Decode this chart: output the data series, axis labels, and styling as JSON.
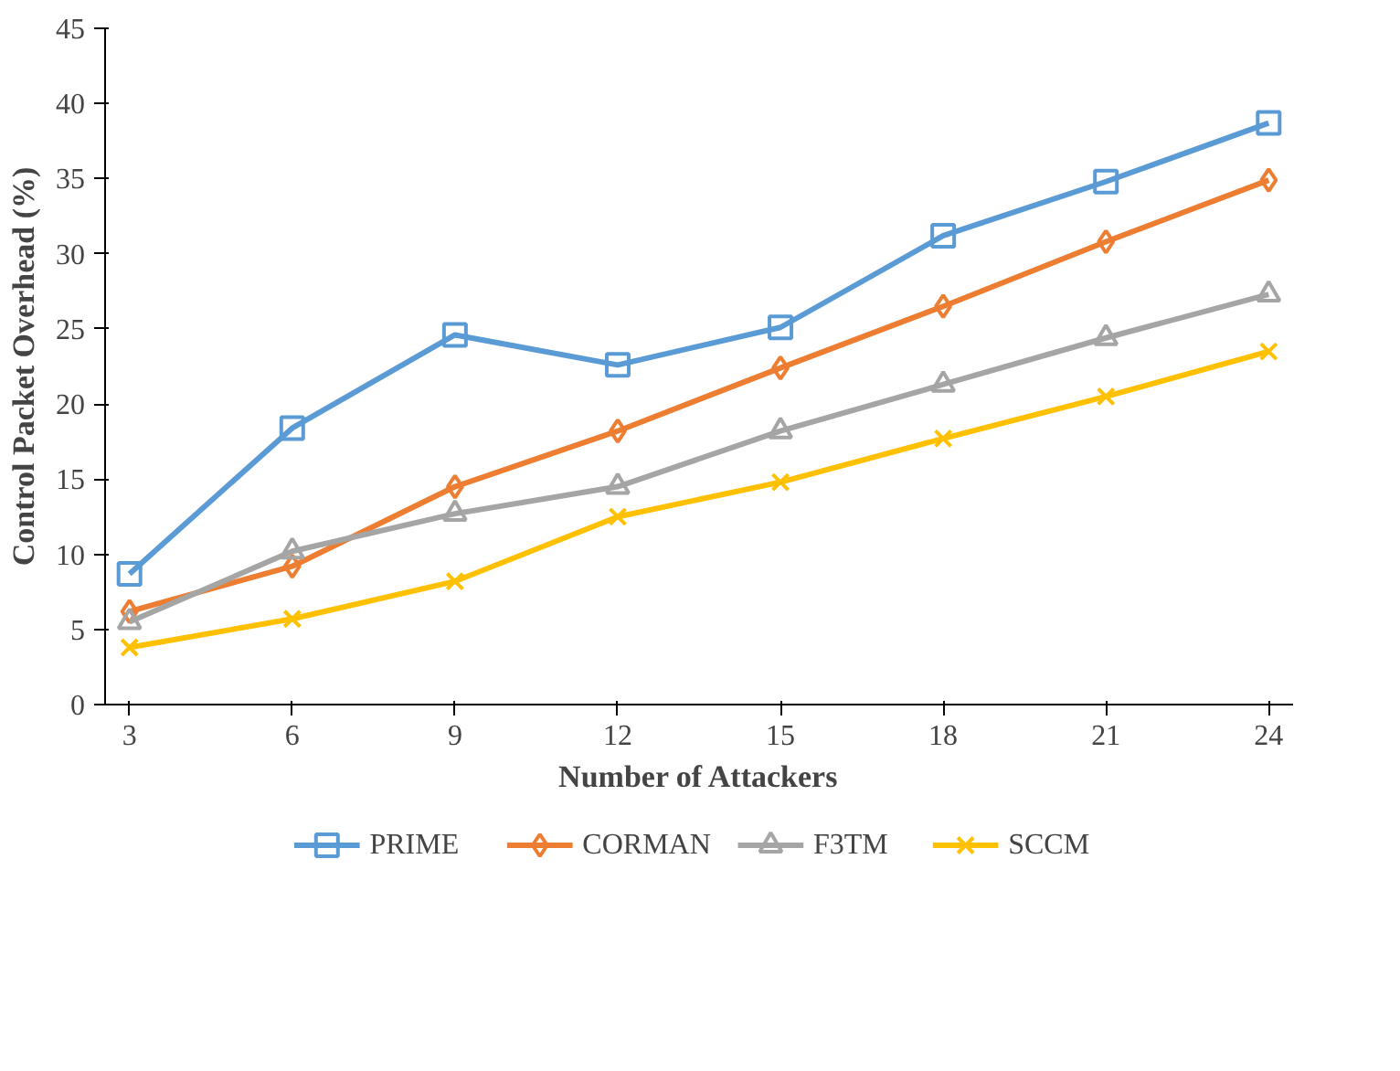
{
  "chart_data": {
    "type": "line",
    "xlabel": "Number of Attackers",
    "ylabel": "Control Packet Overhead (%)",
    "categories": [
      "3",
      "6",
      "9",
      "12",
      "15",
      "18",
      "21",
      "24"
    ],
    "ylim": [
      0,
      45
    ],
    "yticks": [
      0,
      5,
      10,
      15,
      20,
      25,
      30,
      35,
      40,
      45
    ],
    "grid": false,
    "legend": "bottom",
    "line_style": "solid",
    "series": [
      {
        "name": "PRIME",
        "color": "#5b9bd5",
        "marker": "square",
        "values": [
          8.7,
          18.4,
          24.6,
          22.6,
          25.1,
          31.2,
          34.8,
          38.7
        ]
      },
      {
        "name": "CORMAN",
        "color": "#ed7d31",
        "marker": "diamond",
        "values": [
          6.2,
          9.2,
          14.5,
          18.2,
          22.4,
          26.5,
          30.8,
          34.9
        ]
      },
      {
        "name": "F3TM",
        "color": "#a5a5a5",
        "marker": "triangle",
        "values": [
          5.5,
          10.2,
          12.7,
          14.5,
          18.2,
          21.3,
          24.4,
          27.3
        ]
      },
      {
        "name": "SCCM",
        "color": "#ffc000",
        "marker": "x",
        "values": [
          3.8,
          5.7,
          8.2,
          12.5,
          14.8,
          17.7,
          20.5,
          23.5
        ]
      }
    ]
  }
}
